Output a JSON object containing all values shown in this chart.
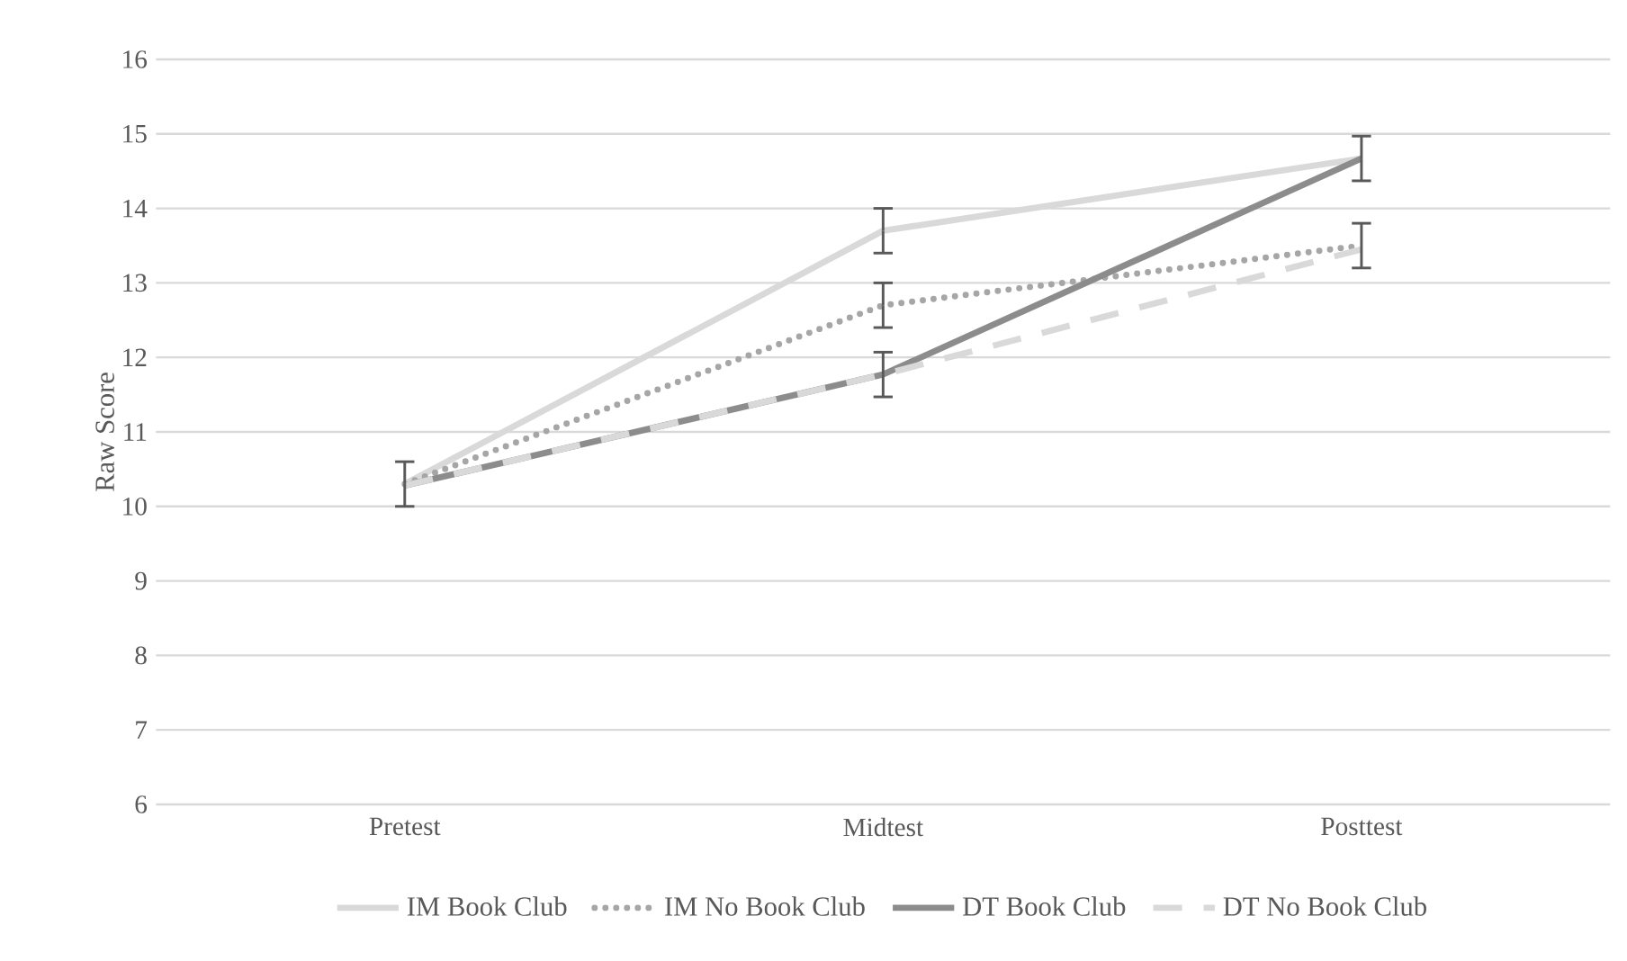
{
  "chart_data": {
    "type": "line",
    "ylabel": "Raw Score",
    "categories": [
      "Pretest",
      "Midtest",
      "Posttest"
    ],
    "series": [
      {
        "name": "IM Book Club",
        "color": "#d9d9d9",
        "line_style": "solid",
        "values": [
          10.3,
          13.7,
          14.67
        ],
        "errors": [
          0.3,
          0.3,
          0.3
        ]
      },
      {
        "name": "IM No Book Club",
        "color": "#a6a6a6",
        "line_style": "dotted",
        "values": [
          10.3,
          12.7,
          13.5
        ],
        "errors": [
          null,
          0.3,
          0.3
        ]
      },
      {
        "name": "DT Book Club",
        "color": "#8c8c8c",
        "line_style": "solid",
        "values": [
          10.28,
          11.77,
          14.67
        ],
        "errors": [
          null,
          0.3,
          null
        ]
      },
      {
        "name": "DT No Book Club",
        "color": "#d9d9d9",
        "line_style": "dashed",
        "values": [
          10.28,
          11.77,
          13.45
        ]
      }
    ],
    "ylim": [
      6,
      16
    ],
    "yticks": [
      6,
      7,
      8,
      9,
      10,
      11,
      12,
      13,
      14,
      15,
      16
    ],
    "grid": "y",
    "legend": "bottom",
    "marker": "none"
  }
}
